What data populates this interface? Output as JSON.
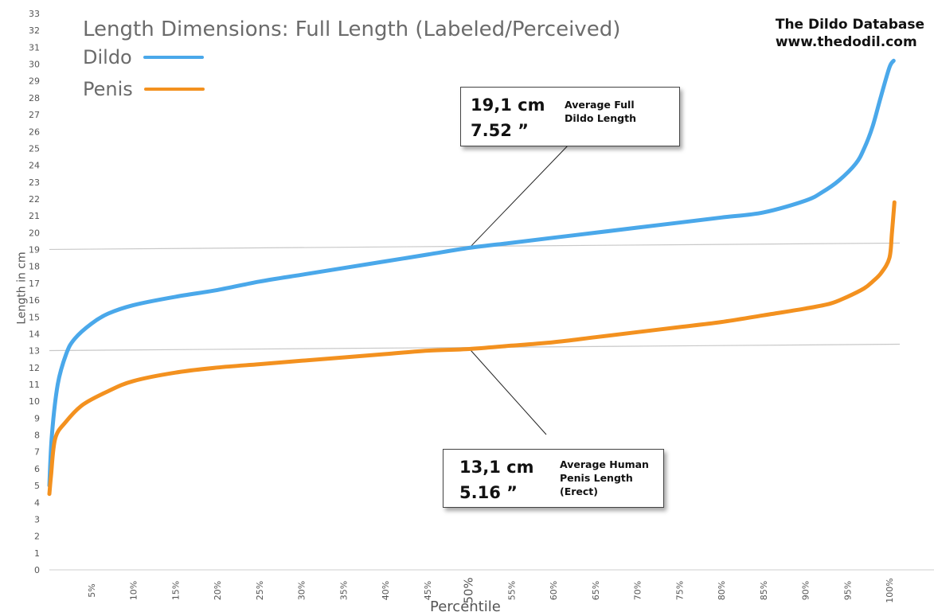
{
  "title": "Length Dimensions: Full Length (Labeled/Perceived)",
  "brand": {
    "line1": "The Dildo Database",
    "line2": "www.thedodil.com"
  },
  "legend": [
    {
      "label": "Dildo",
      "color": "#4aa8ea"
    },
    {
      "label": "Penis",
      "color": "#f3911f"
    }
  ],
  "callouts": [
    {
      "value_cm": "19,1 cm",
      "value_in": "7.52 ”",
      "desc": [
        "Average Full",
        "Dildo Length"
      ]
    },
    {
      "value_cm": "13,1 cm",
      "value_in": "5.16 ”",
      "desc": [
        "Average Human",
        "Penis Length",
        "(Erect)"
      ]
    }
  ],
  "chart_data": {
    "type": "line",
    "xlabel": "Percentile",
    "ylabel": "Length in cm",
    "ylim": [
      0,
      33
    ],
    "xlim": [
      0,
      100
    ],
    "y_ticks": [
      "0",
      "1",
      "2",
      "3",
      "4",
      "5",
      "6",
      "7",
      "8",
      "9",
      "10",
      "11",
      "12",
      "13",
      "14",
      "15",
      "16",
      "17",
      "18",
      "19",
      "20",
      "21",
      "22",
      "23",
      "24",
      "25",
      "26",
      "27",
      "28",
      "29",
      "30",
      "31",
      "32",
      "33"
    ],
    "x_ticks": [
      "5%",
      "10%",
      "15%",
      "20%",
      "25%",
      "30%",
      "35%",
      "40%",
      "45%",
      "50%",
      "55%",
      "60%",
      "65%",
      "70%",
      "75%",
      "80%",
      "85%",
      "90%",
      "95%",
      "100%"
    ],
    "x_tick_values": [
      5,
      10,
      15,
      20,
      25,
      30,
      35,
      40,
      45,
      50,
      55,
      60,
      65,
      70,
      75,
      80,
      85,
      90,
      95,
      100
    ],
    "reference_lines": [
      19.1,
      13.1
    ],
    "series": [
      {
        "name": "Dildo",
        "color": "#4aa8ea",
        "x": [
          0,
          0.3,
          1,
          2,
          3,
          5,
          7,
          10,
          15,
          20,
          25,
          30,
          35,
          40,
          45,
          50,
          55,
          60,
          65,
          70,
          75,
          80,
          85,
          90,
          92,
          94,
          96,
          97,
          98,
          99,
          100,
          100.5
        ],
        "y": [
          5.0,
          8.0,
          11.0,
          12.8,
          13.7,
          14.6,
          15.2,
          15.7,
          16.2,
          16.6,
          17.1,
          17.5,
          17.9,
          18.3,
          18.7,
          19.1,
          19.4,
          19.7,
          20.0,
          20.3,
          20.6,
          20.9,
          21.2,
          21.9,
          22.4,
          23.1,
          24.1,
          25.0,
          26.3,
          28.1,
          29.8,
          30.2
        ]
      },
      {
        "name": "Penis",
        "color": "#f3911f",
        "x": [
          0,
          0.2,
          0.7,
          2,
          4,
          7,
          10,
          15,
          20,
          25,
          30,
          35,
          40,
          45,
          50,
          55,
          60,
          65,
          70,
          75,
          80,
          85,
          90,
          93,
          95,
          97,
          98,
          99,
          100,
          100.3,
          100.6
        ],
        "y": [
          4.5,
          5.6,
          7.8,
          8.8,
          9.8,
          10.6,
          11.2,
          11.7,
          12.0,
          12.2,
          12.4,
          12.6,
          12.8,
          13.0,
          13.1,
          13.3,
          13.5,
          13.8,
          14.1,
          14.4,
          14.7,
          15.1,
          15.5,
          15.8,
          16.2,
          16.7,
          17.1,
          17.6,
          18.5,
          20.0,
          21.8
        ]
      }
    ]
  }
}
